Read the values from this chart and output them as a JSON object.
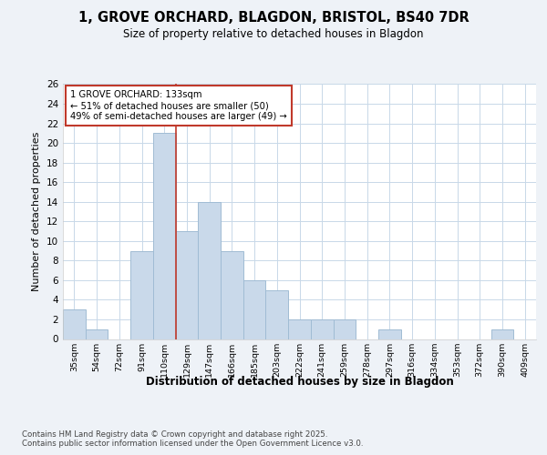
{
  "title_line1": "1, GROVE ORCHARD, BLAGDON, BRISTOL, BS40 7DR",
  "title_line2": "Size of property relative to detached houses in Blagdon",
  "xlabel": "Distribution of detached houses by size in Blagdon",
  "ylabel": "Number of detached properties",
  "bar_labels": [
    "35sqm",
    "54sqm",
    "72sqm",
    "91sqm",
    "110sqm",
    "129sqm",
    "147sqm",
    "166sqm",
    "185sqm",
    "203sqm",
    "222sqm",
    "241sqm",
    "259sqm",
    "278sqm",
    "297sqm",
    "316sqm",
    "334sqm",
    "353sqm",
    "372sqm",
    "390sqm",
    "409sqm"
  ],
  "bar_values": [
    3,
    1,
    0,
    9,
    21,
    11,
    14,
    9,
    6,
    5,
    2,
    2,
    2,
    0,
    1,
    0,
    0,
    0,
    0,
    1,
    0
  ],
  "bar_color": "#c9d9ea",
  "bar_edge_color": "#a0bcd4",
  "vline_x_index": 5,
  "vline_color": "#c0392b",
  "annotation_text": "1 GROVE ORCHARD: 133sqm\n← 51% of detached houses are smaller (50)\n49% of semi-detached houses are larger (49) →",
  "annotation_box_color": "white",
  "annotation_box_edge_color": "#c0392b",
  "ylim": [
    0,
    26
  ],
  "yticks": [
    0,
    2,
    4,
    6,
    8,
    10,
    12,
    14,
    16,
    18,
    20,
    22,
    24,
    26
  ],
  "footer_text": "Contains HM Land Registry data © Crown copyright and database right 2025.\nContains public sector information licensed under the Open Government Licence v3.0.",
  "background_color": "#eef2f7",
  "plot_background_color": "white",
  "grid_color": "#c8d8e8"
}
